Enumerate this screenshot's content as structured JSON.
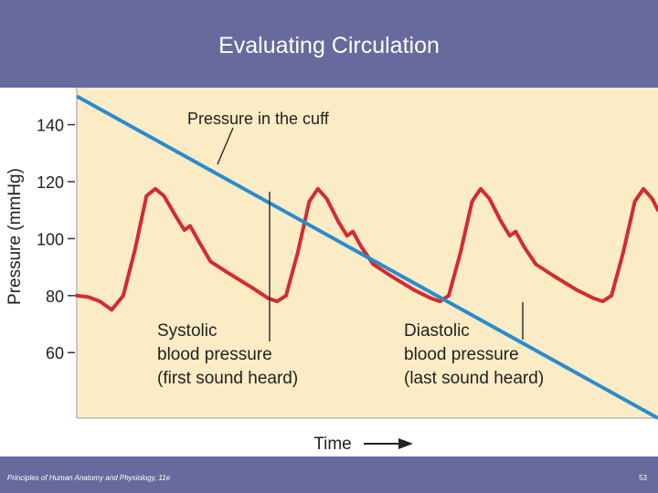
{
  "slide": {
    "title": "Evaluating Circulation",
    "footer_credit": "Principles of Human Anatomy and Physiology, 11e",
    "page_number": "53"
  },
  "colors": {
    "header_bg": "#676a9c",
    "plot_bg": "#fbecc6",
    "cuff_line": "#2a8ccc",
    "pulse_line": "#d42b30"
  },
  "chart_data": {
    "type": "line",
    "ylabel": "Pressure (mmHg)",
    "xlabel": "Time",
    "yticks": [
      140,
      120,
      100,
      80,
      60
    ],
    "ylim": [
      37,
      153
    ],
    "grid": false,
    "series": [
      {
        "name": "Pressure in the cuff",
        "points": [
          [
            0,
            150
          ],
          [
            100,
            37
          ]
        ]
      },
      {
        "points": [
          [
            0,
            80
          ],
          [
            2,
            79.5
          ],
          [
            4,
            78
          ],
          [
            6,
            75
          ],
          [
            8,
            80
          ],
          [
            10,
            96
          ],
          [
            12,
            115
          ],
          [
            13.5,
            117.5
          ],
          [
            15,
            115
          ],
          [
            17,
            108
          ],
          [
            18.5,
            103
          ],
          [
            19.5,
            104.5
          ],
          [
            21,
            99
          ],
          [
            23,
            92
          ],
          [
            26,
            88
          ],
          [
            30,
            83
          ],
          [
            33,
            79
          ],
          [
            34.5,
            78
          ],
          [
            36,
            80
          ],
          [
            38,
            95
          ],
          [
            40,
            113
          ],
          [
            41.5,
            117.5
          ],
          [
            43,
            114
          ],
          [
            45,
            106
          ],
          [
            46.5,
            101
          ],
          [
            47.5,
            102.5
          ],
          [
            49,
            97
          ],
          [
            51,
            91
          ],
          [
            54,
            87
          ],
          [
            58,
            82
          ],
          [
            61,
            79
          ],
          [
            62.5,
            78
          ],
          [
            64,
            80
          ],
          [
            66,
            95
          ],
          [
            68,
            113
          ],
          [
            69.5,
            117.5
          ],
          [
            71,
            114
          ],
          [
            73,
            106
          ],
          [
            74.5,
            101
          ],
          [
            75.5,
            102.5
          ],
          [
            77,
            97
          ],
          [
            79,
            91
          ],
          [
            82,
            87
          ],
          [
            86,
            82
          ],
          [
            89,
            79
          ],
          [
            90.5,
            78
          ],
          [
            92,
            80
          ],
          [
            94,
            95
          ],
          [
            96,
            113
          ],
          [
            97.5,
            117.5
          ],
          [
            99,
            114
          ],
          [
            100,
            110
          ]
        ]
      }
    ],
    "annotations": [
      {
        "text": "Pressure in the cuff"
      },
      {
        "lines": [
          "Systolic",
          "blood pressure",
          "(first sound heard)"
        ],
        "value": 120
      },
      {
        "lines": [
          "Diastolic",
          "blood pressure",
          "(last sound heard)"
        ],
        "value": 80
      }
    ]
  }
}
